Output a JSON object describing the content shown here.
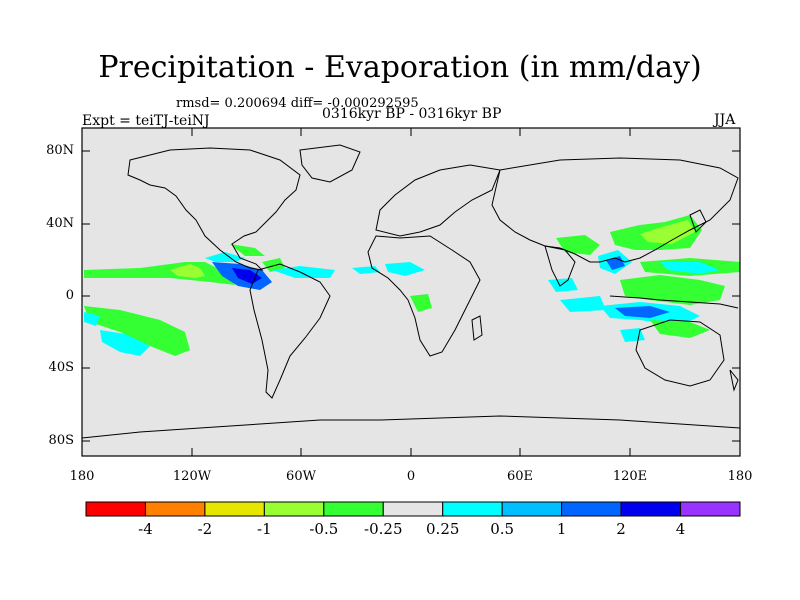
{
  "title": "Precipitation - Evaporation (in mm/day)",
  "stats": "rmsd= 0.200694 diff= -0.000292595",
  "experiment": "Expt = teiTJ-teiNJ",
  "period": "0316kyr BP - 0316kyr BP",
  "season": "JJA",
  "lat_labels": [
    "80N",
    "40N",
    "0",
    "40S",
    "80S"
  ],
  "lon_labels": [
    "180",
    "120W",
    "60W",
    "0",
    "60E",
    "120E",
    "180"
  ],
  "colorbar": {
    "colors": [
      "#ff0000",
      "#ff8000",
      "#e6e600",
      "#99ff33",
      "#33ff33",
      "#e5e5e5",
      "#00ffff",
      "#00bfff",
      "#0066ff",
      "#0000ee",
      "#9933ff"
    ],
    "labels": [
      "-4",
      "-2",
      "-1",
      "-0.5",
      "-0.25",
      "0.25",
      "0.5",
      "1",
      "2",
      "4"
    ]
  },
  "colors": {
    "background": "#e5e5e5",
    "coast": "#000000"
  }
}
